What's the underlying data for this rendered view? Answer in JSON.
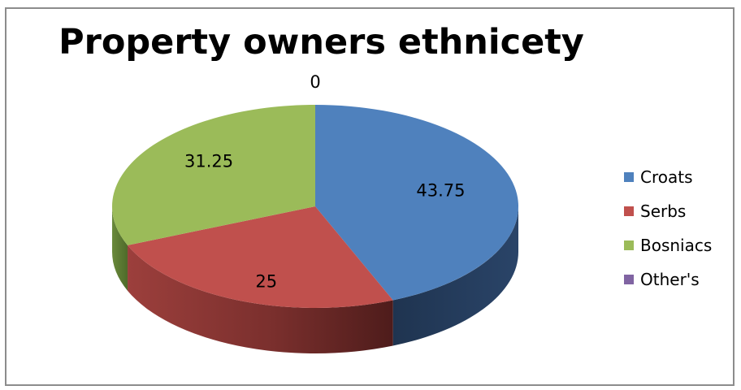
{
  "chart_data": {
    "type": "pie",
    "title": "Property owners ethnicety",
    "categories": [
      "Croats",
      "Serbs",
      "Bosniacs",
      "Other's"
    ],
    "values": [
      43.75,
      25,
      31.25,
      0
    ],
    "colors": [
      "#4f81bd",
      "#c0504d",
      "#9bbb59",
      "#8064a2"
    ],
    "legend_position": "right",
    "style": "3d"
  }
}
